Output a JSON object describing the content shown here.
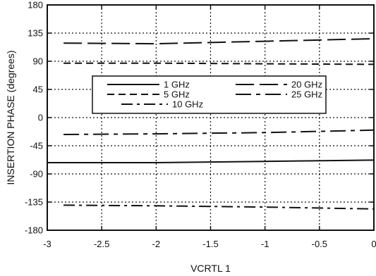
{
  "chart_data": {
    "type": "line",
    "xlabel": "VCRTL 1",
    "ylabel": "INSERTION PHASE (degrees)",
    "xlim": [
      -3,
      0
    ],
    "ylim": [
      -180,
      180
    ],
    "x_ticks": [
      "-3",
      "-2.5",
      "-2",
      "-1.5",
      "-1",
      "-0.5",
      "0"
    ],
    "y_ticks": [
      "180",
      "135",
      "90",
      "45",
      "0",
      "-45",
      "-90",
      "-135",
      "-180"
    ],
    "grid": true,
    "legend_placement": "center-left",
    "series": [
      {
        "name": "1 GHz",
        "style": "solid",
        "x": [
          -3,
          -2,
          -1,
          0
        ],
        "y": [
          -72,
          -72,
          -70,
          -68
        ]
      },
      {
        "name": "5 GHz",
        "style": "dashed",
        "x": [
          -2.85,
          -2,
          -1,
          0
        ],
        "y": [
          87,
          87,
          86,
          85
        ]
      },
      {
        "name": "10 GHz",
        "style": "dash-dot",
        "x": [
          -2.85,
          -2,
          -1,
          0
        ],
        "y": [
          -140,
          -141,
          -143,
          -146
        ]
      },
      {
        "name": "20 GHz",
        "style": "long-dash",
        "x": [
          -2.85,
          -2,
          -1,
          0
        ],
        "y": [
          119,
          118,
          122,
          126
        ]
      },
      {
        "name": "25 GHz",
        "style": "long-dash-dot",
        "x": [
          -2.85,
          -2,
          -1,
          0
        ],
        "y": [
          -27,
          -26,
          -24,
          -20
        ]
      }
    ]
  }
}
